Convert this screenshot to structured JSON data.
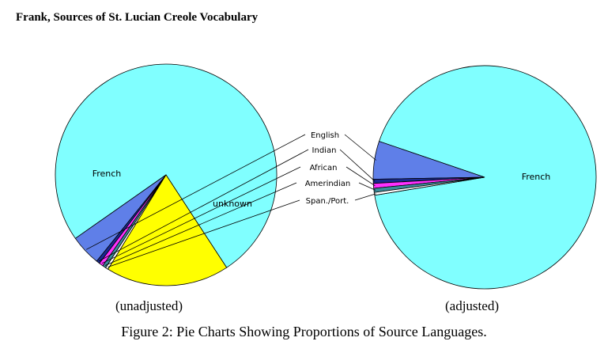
{
  "page": {
    "header": "Frank, Sources of St. Lucian Creole Vocabulary",
    "caption": "Figure 2: Pie Charts Showing Proportions of Source Languages."
  },
  "chart_data": [
    {
      "type": "pie",
      "subtitle": "(unadjusted)",
      "slices": [
        {
          "name": "French",
          "value": 75.5,
          "color": "#80ffff"
        },
        {
          "name": "English",
          "value": 4.5,
          "color": "#5f7fe8"
        },
        {
          "name": "Indian",
          "value": 0.5,
          "color": "#1a2a90"
        },
        {
          "name": "African",
          "value": 0.6,
          "color": "#ff30ff"
        },
        {
          "name": "Amerindian",
          "value": 0.5,
          "color": "#3b8c9a"
        },
        {
          "name": "Span./Port.",
          "value": 0.4,
          "color": "#ffffff"
        },
        {
          "name": "unknown",
          "value": 18.0,
          "color": "#ffff00"
        }
      ]
    },
    {
      "type": "pie",
      "subtitle": "(adjusted)",
      "slices": [
        {
          "name": "French",
          "value": 92.2,
          "color": "#80ffff"
        },
        {
          "name": "English",
          "value": 5.5,
          "color": "#5f7fe8"
        },
        {
          "name": "Indian",
          "value": 0.6,
          "color": "#1a2a90"
        },
        {
          "name": "African",
          "value": 0.7,
          "color": "#ff30ff"
        },
        {
          "name": "Amerindian",
          "value": 0.6,
          "color": "#3b8c9a"
        },
        {
          "name": "Span./Port.",
          "value": 0.4,
          "color": "#ffffff"
        }
      ]
    }
  ],
  "callout_labels": [
    "English",
    "Indian",
    "African",
    "Amerindian",
    "Span./Port."
  ]
}
